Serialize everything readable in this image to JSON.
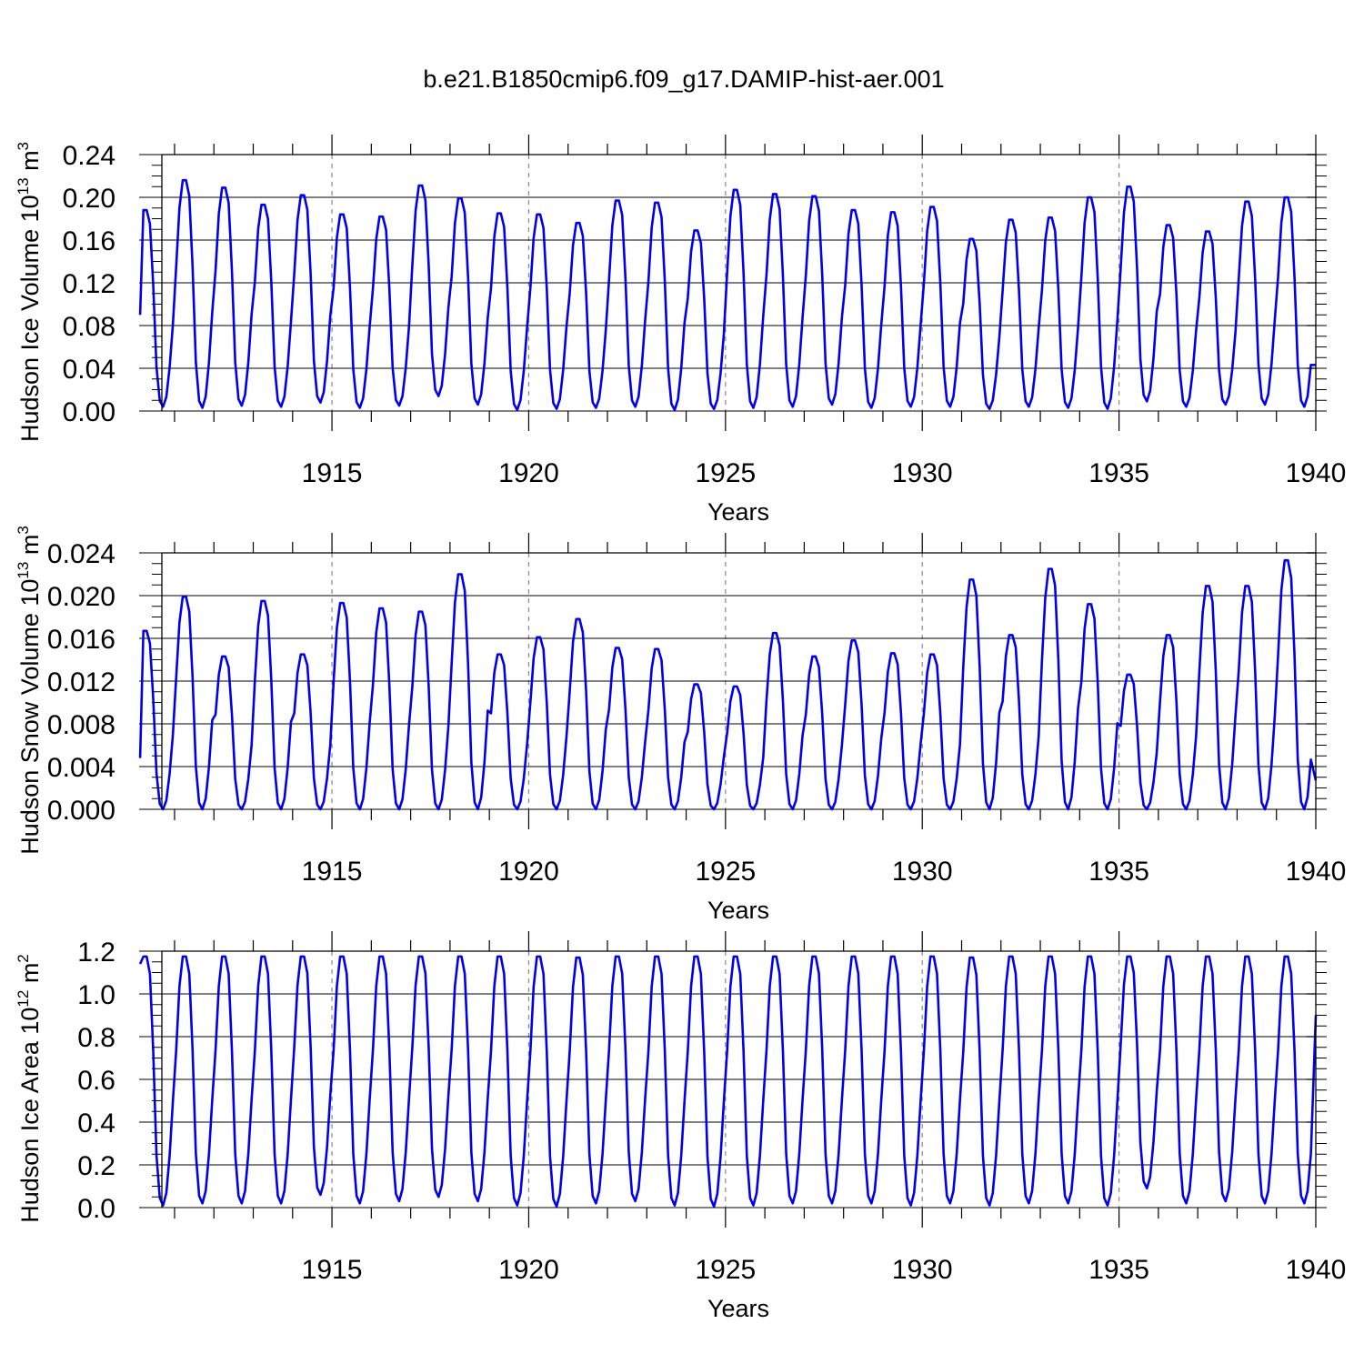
{
  "title": "b.e21.B1850cmip6.f09_g17.DAMIP-hist-aer.001",
  "colors": {
    "line": "#0000ee",
    "axis": "#000000",
    "grid": "#888888"
  },
  "chart_data": [
    {
      "type": "line",
      "xlabel": "Years",
      "ylabel": "Hudson Ice Volume 10^13 m^3",
      "ylabel_text": "Hudson Ice Volume 10",
      "ylabel_sup": "13",
      "ylabel_unit": " m",
      "ylabel_unit_sup": "3",
      "xlim": [
        1910.1,
        1940.0
      ],
      "ylim": [
        0.0,
        0.24
      ],
      "yticks": [
        0.0,
        0.04,
        0.08,
        0.12,
        0.16,
        0.2,
        0.24
      ],
      "ytick_labels": [
        "0.00",
        "0.04",
        "0.08",
        "0.12",
        "0.16",
        "0.20",
        "0.24"
      ],
      "xticks": [
        1915,
        1920,
        1925,
        1930,
        1935,
        1940
      ],
      "xtick_labels": [
        "1915",
        "1920",
        "1925",
        "1930",
        "1935",
        "1940"
      ],
      "annual_max": [
        0.188,
        0.216,
        0.209,
        0.193,
        0.202,
        0.184,
        0.182,
        0.211,
        0.199,
        0.185,
        0.184,
        0.176,
        0.197,
        0.195,
        0.169,
        0.207,
        0.203,
        0.201,
        0.188,
        0.186,
        0.191,
        0.161,
        0.179,
        0.181,
        0.2,
        0.21,
        0.174,
        0.168,
        0.196,
        0.2
      ],
      "annual_min": [
        0.004,
        0.003,
        0.005,
        0.004,
        0.008,
        0.003,
        0.005,
        0.014,
        0.006,
        0.001,
        0.002,
        0.003,
        0.004,
        0.001,
        0.002,
        0.003,
        0.004,
        0.006,
        0.003,
        0.004,
        0.004,
        0.002,
        0.004,
        0.003,
        0.002,
        0.009,
        0.004,
        0.006,
        0.006,
        0.004
      ],
      "start_value": 0.09,
      "end_value": 0.043
    },
    {
      "type": "line",
      "xlabel": "Years",
      "ylabel": "Hudson Snow Volume 10^13 m^3",
      "ylabel_text": "Hudson Snow Volume 10",
      "ylabel_sup": "13",
      "ylabel_unit": " m",
      "ylabel_unit_sup": "3",
      "xlim": [
        1910.1,
        1940.0
      ],
      "ylim": [
        0.0,
        0.024
      ],
      "yticks": [
        0.0,
        0.004,
        0.008,
        0.012,
        0.016,
        0.02,
        0.024
      ],
      "ytick_labels": [
        "0.000",
        "0.004",
        "0.008",
        "0.012",
        "0.016",
        "0.020",
        "0.024"
      ],
      "xticks": [
        1915,
        1920,
        1925,
        1930,
        1935,
        1940
      ],
      "xtick_labels": [
        "1915",
        "1920",
        "1925",
        "1930",
        "1935",
        "1940"
      ],
      "annual_max": [
        0.0167,
        0.0199,
        0.0143,
        0.0195,
        0.0145,
        0.0193,
        0.0188,
        0.0185,
        0.022,
        0.0145,
        0.0161,
        0.0178,
        0.0151,
        0.015,
        0.0117,
        0.0115,
        0.0165,
        0.0143,
        0.0158,
        0.0146,
        0.0145,
        0.0215,
        0.0163,
        0.0225,
        0.0192,
        0.0126,
        0.0163,
        0.0209,
        0.0209,
        0.0233
      ],
      "annual_min": [
        0.0,
        0.0,
        0.0,
        0.0,
        0.0,
        0.0,
        0.0,
        0.0,
        0.0,
        0.0,
        0.0,
        0.0,
        0.0,
        0.0,
        0.0,
        0.0,
        0.0,
        0.0,
        0.0,
        0.0,
        0.0,
        0.0,
        0.0,
        0.0,
        0.0,
        0.0,
        0.0,
        0.0,
        0.0,
        0.0
      ],
      "start_value": 0.0048,
      "end_value": 0.0027
    },
    {
      "type": "line",
      "xlabel": "Years",
      "ylabel": "Hudson Ice Area 10^12 m^2",
      "ylabel_text": "Hudson Ice Area 10",
      "ylabel_sup": "12",
      "ylabel_unit": " m",
      "ylabel_unit_sup": "2",
      "xlim": [
        1910.1,
        1940.0
      ],
      "ylim": [
        0.0,
        1.2
      ],
      "yticks": [
        0.0,
        0.2,
        0.4,
        0.6,
        0.8,
        1.0,
        1.2
      ],
      "ytick_labels": [
        "0.0",
        "0.2",
        "0.4",
        "0.6",
        "0.8",
        "1.0",
        "1.2"
      ],
      "xticks": [
        1915,
        1920,
        1925,
        1930,
        1935,
        1940
      ],
      "xtick_labels": [
        "1915",
        "1920",
        "1925",
        "1930",
        "1935",
        "1940"
      ],
      "annual_max": [
        1.175,
        1.175,
        1.175,
        1.175,
        1.175,
        1.175,
        1.175,
        1.175,
        1.175,
        1.175,
        1.175,
        1.17,
        1.175,
        1.175,
        1.175,
        1.175,
        1.175,
        1.175,
        1.175,
        1.175,
        1.175,
        1.17,
        1.175,
        1.175,
        1.175,
        1.175,
        1.175,
        1.175,
        1.175,
        1.175
      ],
      "annual_min": [
        0.01,
        0.02,
        0.02,
        0.02,
        0.06,
        0.02,
        0.03,
        0.05,
        0.03,
        0.01,
        0.005,
        0.02,
        0.03,
        0.01,
        0.005,
        0.01,
        0.02,
        0.02,
        0.02,
        0.01,
        0.02,
        0.01,
        0.02,
        0.02,
        0.01,
        0.09,
        0.02,
        0.03,
        0.02,
        0.02
      ],
      "start_value": 1.14,
      "end_value": 0.9
    }
  ]
}
